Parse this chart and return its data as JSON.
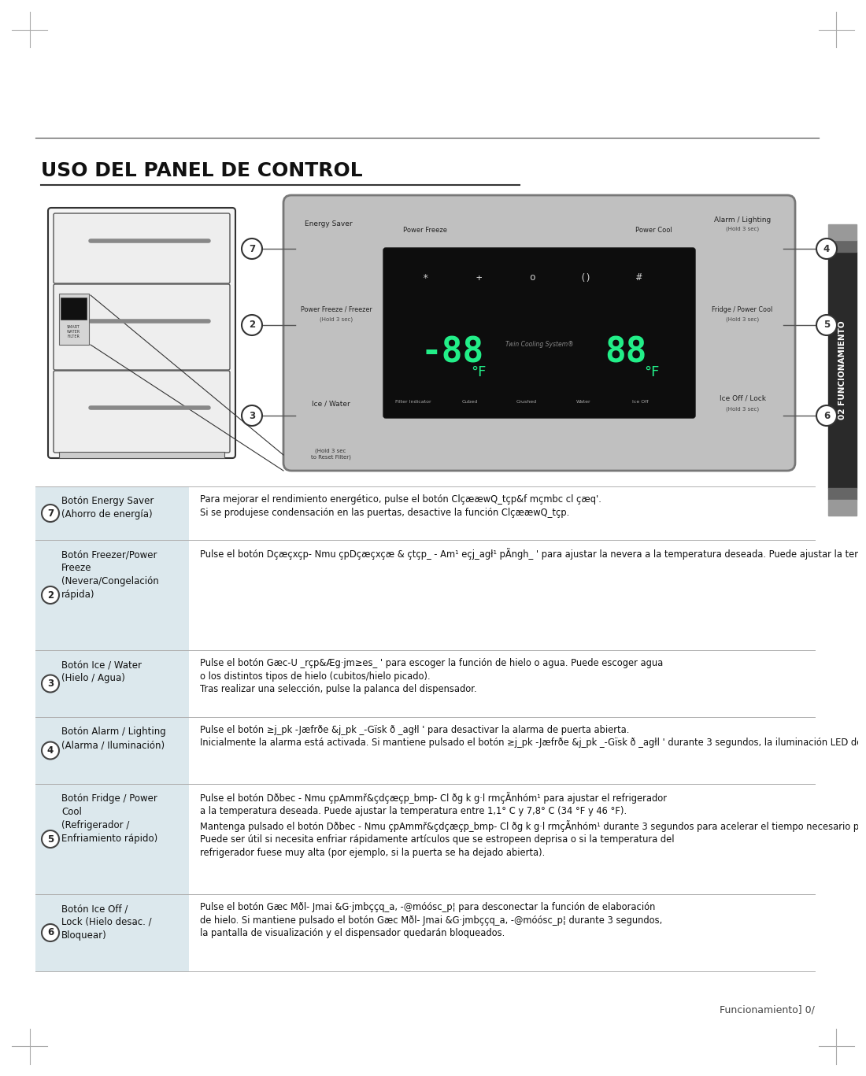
{
  "title": "USO DEL PANEL DE CONTROL",
  "bg_color": "#ffffff",
  "section_bg": "#dce8ed",
  "items": [
    {
      "number": "7",
      "label": "Botón Energy Saver\n(Ahorro de energía)",
      "text": "Para mejorar el rendimiento energético, pulse el botón ClçææwQ_tçp&f mçmbc cl çæq'.\nSi se produjese condensación en las puertas, desactive la función ClçææwQ_tçp.",
      "nlines": 2
    },
    {
      "number": "2",
      "label": "Botón Freezer/Power\nFreeze\n(Nevera/Congelación\nrápida)",
      "text": "Pulse el botón Dçæçxçp- Nmu çpDçæçxçæ & çtçp_ - Am¹ eçj_agł¹ pÃngh_ ' para ajustar la nevera a la temperatura deseada. Puede ajustar la temperatura entre 34 °F y 46 °F Mantenga pulsado el botón Dçæçxçp- Nmu çpDçæçxçæ & çtçp_ - Am¹ eçj_agł¹ pÃngh_ ' durante 3 segundos para acelerar el tiempo necesario para congelar productos en la nevera. Puede ser útil si necesita congelar rápidamente artículos que se estropeen deprisa o si la temperatura de la nevera fuese muy alta (por ejemplo, si la puerta se ha dejado abierta).",
      "nlines": 7
    },
    {
      "number": "3",
      "label": "Botón Ice / Water\n(Hielo / Agua)",
      "text": "Pulse el botón Gæc-U _rçp&Æg·jm≥es_ ' para escoger la función de hielo o agua. Puede escoger agua\no los distintos tipos de hielo (cubitos/hielo picado).\nTras realizar una selección, pulse la palanca del dispensador.",
      "nlines": 3
    },
    {
      "number": "4",
      "label": "Botón Alarm / Lighting\n(Alarma / Iluminación)",
      "text": "Pulse el botón ≥j_pk -Jæfrðe &j_pk _-Gïsk ð _agłl ' para desactivar la alarma de puerta abierta.\nInicialmente la alarma está activada. Si mantiene pulsado el botón ≥j_pk -Jæfrðe &j_pk _-Gïsk ð _agłl ' durante 3 segundos, la iluminación LED del dispensador permanecerá encendida.",
      "nlines": 3
    },
    {
      "number": "5",
      "label": "Botón Fridge / Power\nCool\n(Refrigerador /\nEnfriamiento rápido)",
      "text": "Pulse el botón Dðbec - Nmu çpAmmř&çdçæçp_bmp- Cl ðg k g·l rmçÃnhóm¹ para ajustar el refrigerador\na la temperatura deseada. Puede ajustar la temperatura entre 1,1° C y 7,8° C (34 °F y 46 °F).\nMantenga pulsado el botón Dðbec - Nmu çpAmmř&çdçæçp_bmp- Cl ðg k g·l rmçÃnhóm¹ durante 3 segundos para acelerar el tiempo necesario para enfriar productos en el refrigerador.\nPuede ser útil si necesita enfriar rápidamente artículos que se estropeen deprisa o si la temperatura del\nrefrigerador fuese muy alta (por ejemplo, si la puerta se ha dejado abierta).",
      "nlines": 6
    },
    {
      "number": "6",
      "label": "Botón Ice Off /\nLock (Hielo desac. /\nBloquear)",
      "text": "Pulse el botón Gæc Mðl- Jmai &G·jmbççq_a, -@móósc_p¦ para desconectar la función de elaboración\nde hielo. Si mantiene pulsado el botón Gæc Mðl- Jmai &G·jmbççq_a, -@móósc_p¦ durante 3 segundos,\nla pantalla de visualización y el dispensador quedarán bloqueados.",
      "nlines": 3
    }
  ],
  "footer_text": "Funcionamiento] 0/"
}
